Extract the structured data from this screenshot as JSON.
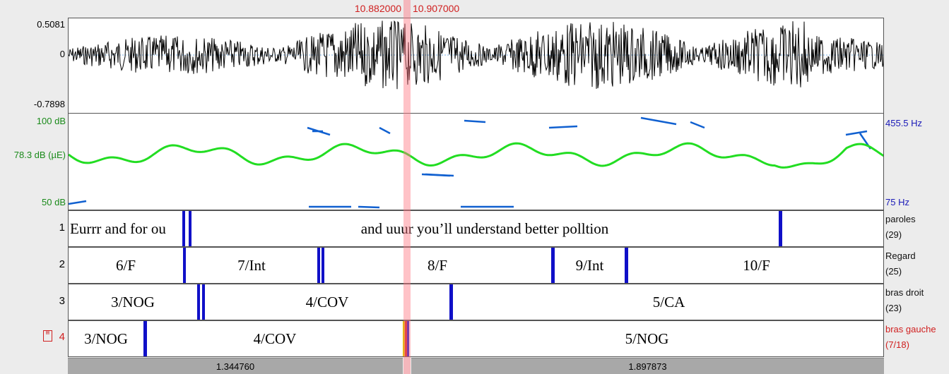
{
  "selection": {
    "start": "10.882000",
    "end": "10.907000"
  },
  "waveform": {
    "ymax": "0.5081",
    "yzero": "0",
    "ymin": "-0.7898"
  },
  "analysis": {
    "intensity_top": "100 dB",
    "intensity_cursor": "78.3 dB (µE)",
    "intensity_bottom": "50 dB",
    "pitch_top": "455.5 Hz",
    "pitch_bottom": "75 Hz"
  },
  "colors": {
    "selection": "#ff9aa2",
    "boundary": "#1010c8",
    "intensity": "#22dd22",
    "pitch": "#1060d0",
    "highlight": "#d02020"
  },
  "tiers": [
    {
      "num": "1",
      "name": "paroles",
      "count": "(29)",
      "segments": [
        "Eurrr and for ou",
        "and uuur you’ll understand  better polltion"
      ]
    },
    {
      "num": "2",
      "name": "Regard",
      "count": "(25)",
      "segments": [
        "6/F",
        "7/Int",
        "8/F",
        "9/Int",
        "10/F"
      ]
    },
    {
      "num": "3",
      "name": "bras droit",
      "count": "(23)",
      "segments": [
        "3/NOG",
        "4/COV",
        "5/CA"
      ]
    },
    {
      "num": "4",
      "name": "bras gauche",
      "count": "(7/18)",
      "segments": [
        "3/NOG",
        "4/COV",
        "5/NOG"
      ]
    }
  ],
  "bottom": {
    "left_duration": "1.344760",
    "right_duration": "1.897873"
  }
}
